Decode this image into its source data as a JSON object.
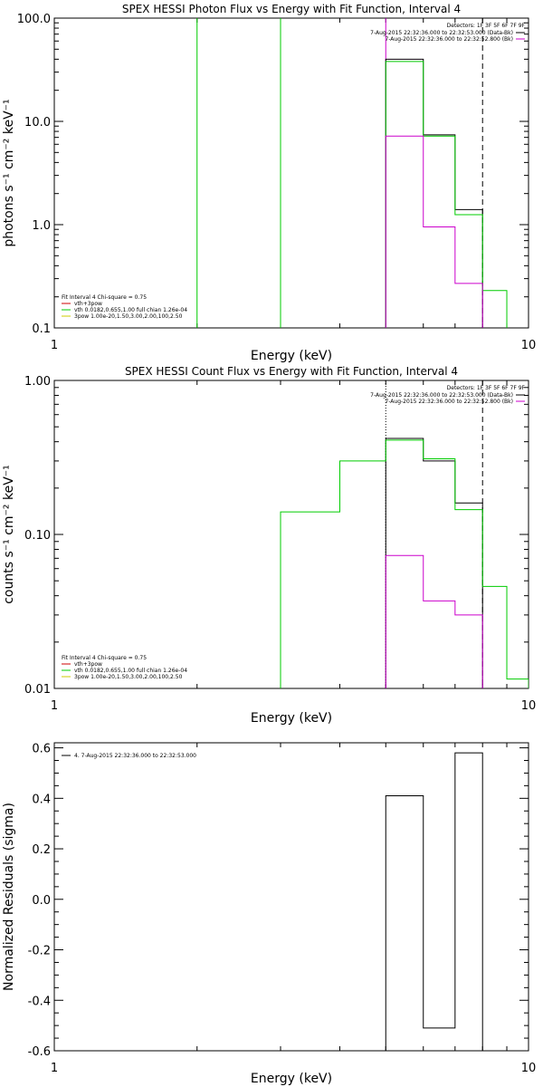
{
  "chart_data": [
    {
      "type": "line",
      "title": "SPEX HESSI Photon Flux vs Energy with Fit Function, Interval 4",
      "xlabel": "Energy (keV)",
      "ylabel": "photons s⁻¹ cm⁻² keV⁻¹",
      "xscale": "log",
      "yscale": "log",
      "xlim": [
        1,
        10
      ],
      "ylim": [
        0.1,
        100
      ],
      "x_ticks": [
        "1",
        "10"
      ],
      "y_ticks": [
        "0.1",
        "1.0",
        "10.0",
        "100.0"
      ],
      "legend_right": {
        "title": "Detectors: 1F 3F 5F 6F 7F 9F",
        "items": [
          {
            "text": "7-Aug-2015 22:32:36.000 to 22:32:53.000 (Data-Bk)",
            "color": "#000000"
          },
          {
            "text": "7-Aug-2015 22:32:36.000 to 22:32:52.800 (Bk)",
            "color": "#cc00cc"
          }
        ]
      },
      "legend_left": {
        "title": "Fit Interval 4   Chi-square = 0.75",
        "items": [
          {
            "text": "vth+3pow",
            "color": "#cc0000"
          },
          {
            "text": "vth 0.0182,0.655,1.00  full chian 1.26e-04",
            "color": "#00cc00"
          },
          {
            "text": "3pow 1.00e-20,1.50,3.00,2.00,100,2.50",
            "color": "#cccc00"
          }
        ]
      },
      "vlines": [
        {
          "x": 2.0,
          "color": "#00cc00",
          "style": "solid"
        },
        {
          "x": 3.0,
          "color": "#00cc00",
          "style": "solid"
        },
        {
          "x": 5.0,
          "color": "#cc00cc",
          "style": "solid"
        },
        {
          "x": 8.0,
          "color": "#000000",
          "style": "dashed"
        }
      ],
      "series": [
        {
          "color": "#000000",
          "edges": [
            5,
            6,
            7,
            8
          ],
          "values": [
            40,
            7.4,
            1.4
          ]
        },
        {
          "color": "#00cc00",
          "edges": [
            5,
            6,
            7,
            8,
            9
          ],
          "values": [
            38,
            7.2,
            1.25,
            0.23
          ]
        },
        {
          "color": "#cc00cc",
          "edges": [
            5,
            6,
            7,
            8
          ],
          "values": [
            7.2,
            0.95,
            0.27
          ]
        }
      ]
    },
    {
      "type": "line",
      "title": "SPEX HESSI Count Flux vs Energy with Fit Function, Interval 4",
      "xlabel": "Energy (keV)",
      "ylabel": "counts s⁻¹ cm⁻² keV⁻¹",
      "xscale": "log",
      "yscale": "log",
      "xlim": [
        1,
        10
      ],
      "ylim": [
        0.01,
        1
      ],
      "x_ticks": [
        "1",
        "10"
      ],
      "y_ticks": [
        "0.01",
        "0.10",
        "1.00"
      ],
      "legend_right": {
        "title": "Detectors: 1F 3F 5F 6F 7F 9F",
        "items": [
          {
            "text": "7-Aug-2015 22:32:36.000 to 22:32:53.000 (Data-Bk)",
            "color": "#000000"
          },
          {
            "text": "7-Aug-2015 22:32:36.000 to 22:32:52.800 (Bk)",
            "color": "#cc00cc"
          }
        ]
      },
      "legend_left": {
        "title": "Fit Interval 4   Chi-square = 0.75",
        "items": [
          {
            "text": "vth+3pow",
            "color": "#cc0000"
          },
          {
            "text": "vth 0.0182,0.655,1.00  full chian 1.26e-04",
            "color": "#00cc00"
          },
          {
            "text": "3pow 1.00e-20,1.50,3.00,2.00,100,2.50",
            "color": "#cccc00"
          }
        ]
      },
      "vlines": [
        {
          "x": 5.0,
          "color": "#000000",
          "style": "dotted"
        },
        {
          "x": 8.0,
          "color": "#000000",
          "style": "dashed"
        }
      ],
      "series": [
        {
          "color": "#000000",
          "edges": [
            5,
            6,
            7,
            8
          ],
          "values": [
            0.42,
            0.3,
            0.16
          ]
        },
        {
          "color": "#00cc00",
          "edges": [
            3,
            4,
            5,
            6,
            7,
            8,
            9,
            10
          ],
          "values": [
            0.14,
            0.3,
            0.41,
            0.31,
            0.145,
            0.046,
            0.0115
          ],
          "baseline": 0.01
        },
        {
          "color": "#cc00cc",
          "edges": [
            5,
            6,
            7,
            8
          ],
          "values": [
            0.073,
            0.037,
            0.03
          ],
          "baseline": 0.01
        }
      ]
    },
    {
      "type": "line",
      "title": "",
      "xlabel": "Energy (keV)",
      "ylabel": "Normalized Residuals (sigma)",
      "xscale": "log",
      "yscale": "linear",
      "xlim": [
        1,
        10
      ],
      "ylim": [
        -0.6,
        0.62
      ],
      "x_ticks": [
        "1",
        "10"
      ],
      "y_ticks": [
        "-0.6",
        "-0.4",
        "-0.2",
        "0.0",
        "0.2",
        "0.4",
        "0.6"
      ],
      "legend_right": null,
      "legend_left": {
        "title": "",
        "items": [
          {
            "text": "4.  7-Aug-2015 22:32:36.000 to 22:32:53.000",
            "color": "#000000"
          }
        ]
      },
      "vlines": [],
      "series": [
        {
          "color": "#000000",
          "edges": [
            5,
            6,
            7,
            8
          ],
          "values": [
            0.41,
            -0.51,
            0.58
          ],
          "baseline": -0.6
        }
      ]
    }
  ]
}
